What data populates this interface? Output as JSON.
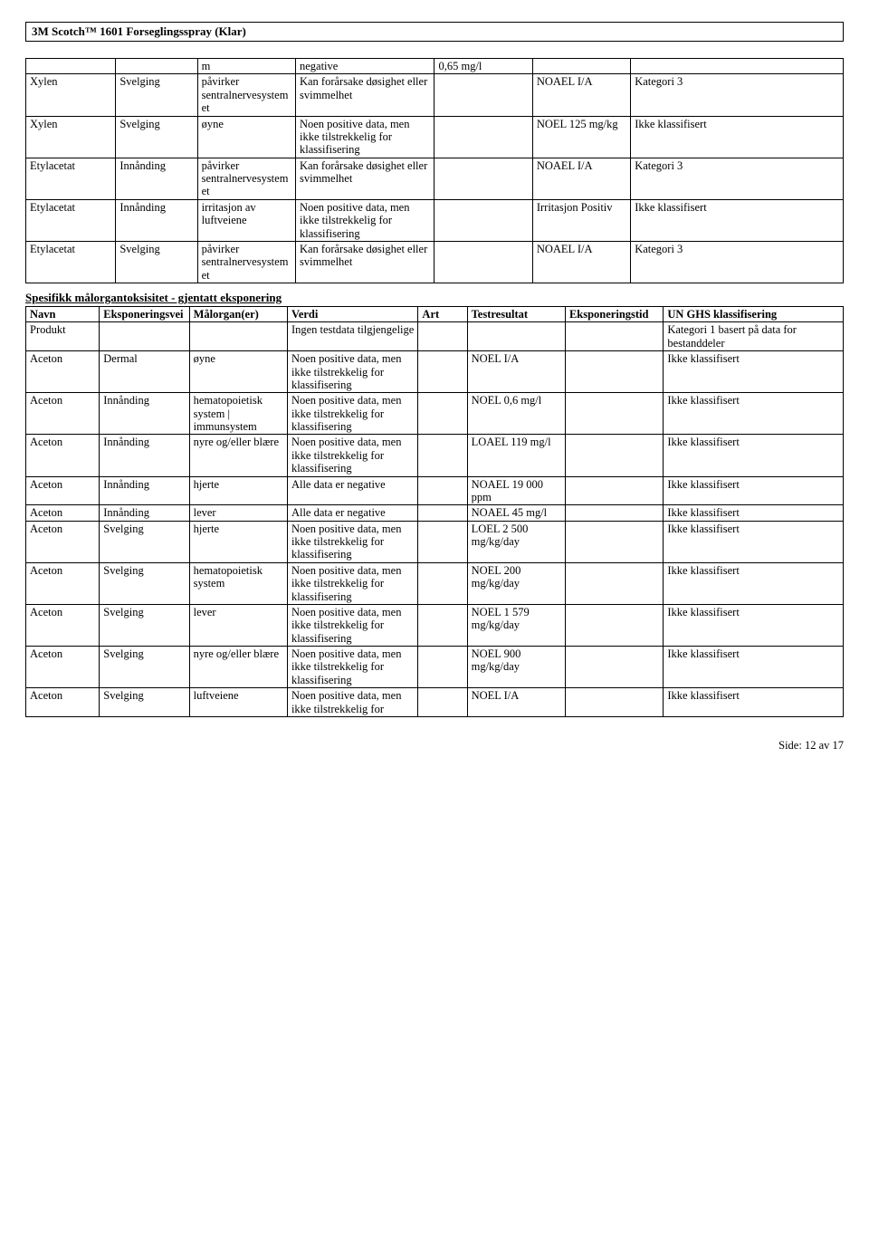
{
  "header": {
    "title": "3M Scotch™ 1601 Forseglingsspray (Klar)"
  },
  "table1": {
    "rows": [
      [
        "",
        "",
        "m",
        "negative",
        "0,65 mg/l",
        "",
        ""
      ],
      [
        "Xylen",
        "Svelging",
        "påvirker sentralnervesystemet",
        "Kan forårsake døsighet eller svimmelhet",
        "",
        "NOAEL I/A",
        "Kategori 3"
      ],
      [
        "Xylen",
        "Svelging",
        "øyne",
        "Noen positive data, men ikke tilstrekkelig for klassifisering",
        "",
        "NOEL 125 mg/kg",
        "Ikke klassifisert"
      ],
      [
        "Etylacetat",
        "Innånding",
        "påvirker sentralnervesystemet",
        "Kan forårsake døsighet eller svimmelhet",
        "",
        "NOAEL I/A",
        "Kategori 3"
      ],
      [
        "Etylacetat",
        "Innånding",
        "irritasjon av luftveiene",
        "Noen positive data, men ikke tilstrekkelig for klassifisering",
        "",
        "Irritasjon Positiv",
        "Ikke klassifisert"
      ],
      [
        "Etylacetat",
        "Svelging",
        "påvirker sentralnervesystemet",
        "Kan forårsake døsighet eller svimmelhet",
        "",
        "NOAEL I/A",
        "Kategori 3"
      ]
    ]
  },
  "section2": {
    "title": "Spesifikk målorgantoksisitet - gjentatt eksponering"
  },
  "table2": {
    "headers": [
      "Navn",
      "Eksponeringsvei",
      "Målorgan(er)",
      "Verdi",
      "Art",
      "Testresultat",
      "Eksponeringstid",
      "UN GHS klassifisering"
    ],
    "rows": [
      [
        "Produkt",
        "",
        "",
        "Ingen testdata tilgjengelige",
        "",
        "",
        "",
        "Kategori 1 basert på data for bestanddeler"
      ],
      [
        "Aceton",
        "Dermal",
        "øyne",
        "Noen positive data, men ikke tilstrekkelig for klassifisering",
        "",
        "NOEL I/A",
        "",
        "Ikke klassifisert"
      ],
      [
        "Aceton",
        "Innånding",
        "hematopoietisk system | immunsystem",
        "Noen positive data, men ikke tilstrekkelig for klassifisering",
        "",
        "NOEL 0,6 mg/l",
        "",
        "Ikke klassifisert"
      ],
      [
        "Aceton",
        "Innånding",
        "nyre og/eller blære",
        "Noen positive data, men ikke tilstrekkelig for klassifisering",
        "",
        "LOAEL 119 mg/l",
        "",
        "Ikke klassifisert"
      ],
      [
        "Aceton",
        "Innånding",
        "hjerte",
        "Alle data er negative",
        "",
        "NOAEL 19 000 ppm",
        "",
        "Ikke klassifisert"
      ],
      [
        "Aceton",
        "Innånding",
        "lever",
        "Alle data er negative",
        "",
        "NOAEL 45 mg/l",
        "",
        "Ikke klassifisert"
      ],
      [
        "Aceton",
        "Svelging",
        "hjerte",
        "Noen positive data, men ikke tilstrekkelig for klassifisering",
        "",
        "LOEL 2 500 mg/kg/day",
        "",
        "Ikke klassifisert"
      ],
      [
        "Aceton",
        "Svelging",
        "hematopoietisk system",
        "Noen positive data, men ikke tilstrekkelig for klassifisering",
        "",
        "NOEL 200 mg/kg/day",
        "",
        "Ikke klassifisert"
      ],
      [
        "Aceton",
        "Svelging",
        "lever",
        "Noen positive data, men ikke tilstrekkelig for klassifisering",
        "",
        "NOEL 1 579 mg/kg/day",
        "",
        "Ikke klassifisert"
      ],
      [
        "Aceton",
        "Svelging",
        "nyre og/eller blære",
        "Noen positive data, men ikke tilstrekkelig for klassifisering",
        "",
        "NOEL 900 mg/kg/day",
        "",
        "Ikke klassifisert"
      ],
      [
        "Aceton",
        "Svelging",
        "luftveiene",
        "Noen positive data, men ikke tilstrekkelig for",
        "",
        "NOEL I/A",
        "",
        "Ikke klassifisert"
      ]
    ]
  },
  "footer": {
    "text": "Side: 12 av  17"
  }
}
